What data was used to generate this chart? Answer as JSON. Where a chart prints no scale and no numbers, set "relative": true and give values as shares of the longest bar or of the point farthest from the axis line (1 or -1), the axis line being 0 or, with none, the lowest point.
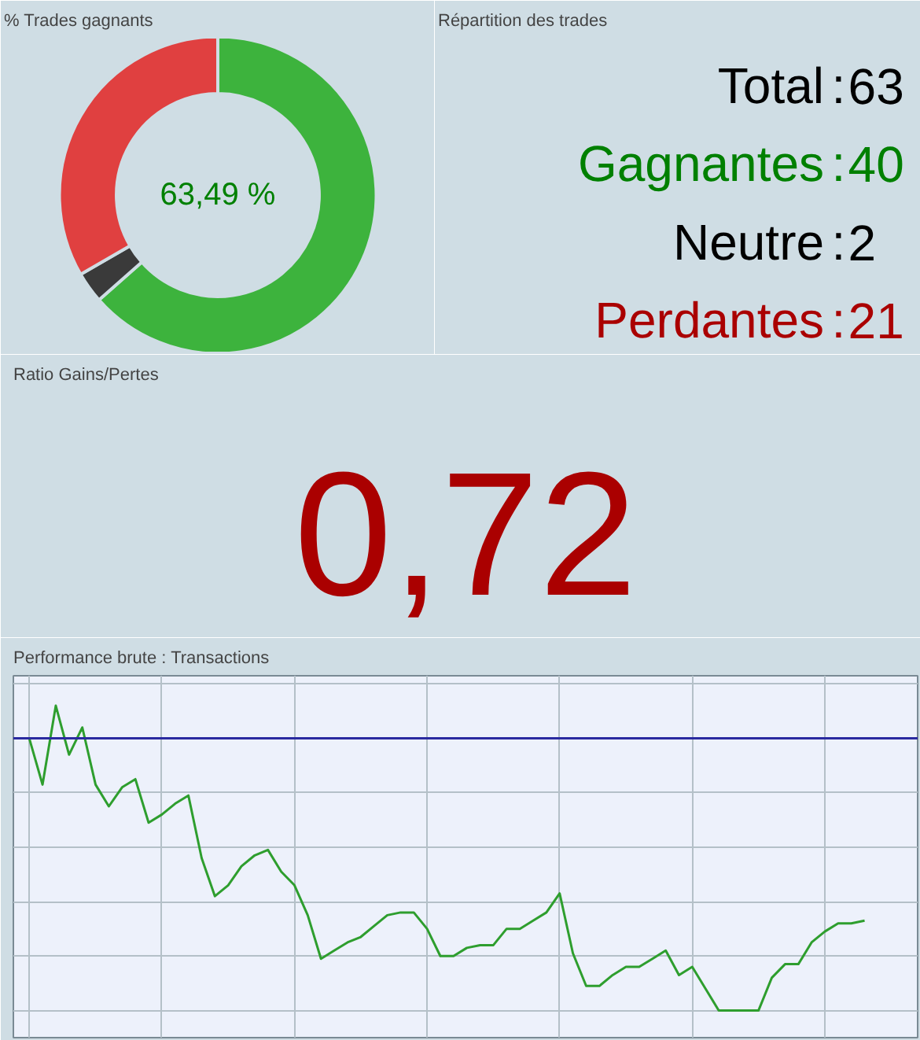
{
  "chart_data": [
    {
      "type": "donut",
      "title": "% Trades gagnants",
      "categories": [
        null,
        null,
        null
      ],
      "values": [
        63.49,
        3.17,
        33.33
      ],
      "colors": [
        "#3db33d",
        "#3a3a3a",
        "#e04040"
      ],
      "annotations": [
        "63,49 %"
      ]
    },
    {
      "type": "other",
      "title": "Répartition des trades",
      "categories": [
        "Total",
        "Gagnantes",
        "Neutre",
        "Perdantes"
      ],
      "values": [
        63,
        40,
        2,
        21
      ],
      "data_labels": true,
      "annotations": [
        ":",
        ":",
        ":",
        ":"
      ]
    },
    {
      "type": "other",
      "title": "Ratio Gains/Pertes",
      "values": [
        0.72
      ],
      "value_labels": [
        "0,72"
      ]
    },
    {
      "type": "line",
      "title": "Performance brute : Transactions",
      "relative": true,
      "grid": true,
      "tick_labels": false,
      "categories": [
        null,
        null,
        null,
        null,
        null,
        null,
        null,
        null,
        null,
        null,
        null,
        null,
        null,
        null,
        null,
        null,
        null,
        null,
        null,
        null,
        null,
        null,
        null,
        null,
        null,
        null,
        null,
        null,
        null,
        null,
        null,
        null,
        null,
        null,
        null,
        null,
        null,
        null,
        null,
        null,
        null,
        null,
        null,
        null,
        null,
        null,
        null,
        null,
        null,
        null,
        null,
        null,
        null,
        null,
        null,
        null,
        null,
        null,
        null,
        null,
        null,
        null,
        null,
        null
      ],
      "ref_lines": [
        {
          "axis": "y",
          "value": 0,
          "color": "#2a2aa0"
        }
      ],
      "series": [
        {
          "color": "#2e9e2e",
          "values": [
            0,
            -0.17,
            0.12,
            -0.06,
            0.04,
            -0.17,
            -0.25,
            -0.18,
            -0.15,
            -0.31,
            -0.28,
            -0.24,
            -0.21,
            -0.44,
            -0.58,
            -0.54,
            -0.47,
            -0.43,
            -0.41,
            -0.49,
            -0.54,
            -0.65,
            -0.81,
            -0.78,
            -0.75,
            -0.73,
            -0.69,
            -0.65,
            -0.64,
            -0.64,
            -0.7,
            -0.8,
            -0.8,
            -0.77,
            -0.76,
            -0.76,
            -0.7,
            -0.7,
            -0.67,
            -0.64,
            -0.57,
            -0.79,
            -0.91,
            -0.91,
            -0.87,
            -0.84,
            -0.84,
            -0.81,
            -0.78,
            -0.87,
            -0.84,
            -0.92,
            -1,
            -1,
            -1,
            -1,
            -0.88,
            -0.83,
            -0.83,
            -0.75,
            -0.71,
            -0.68,
            -0.68,
            -0.67
          ]
        }
      ]
    }
  ]
}
